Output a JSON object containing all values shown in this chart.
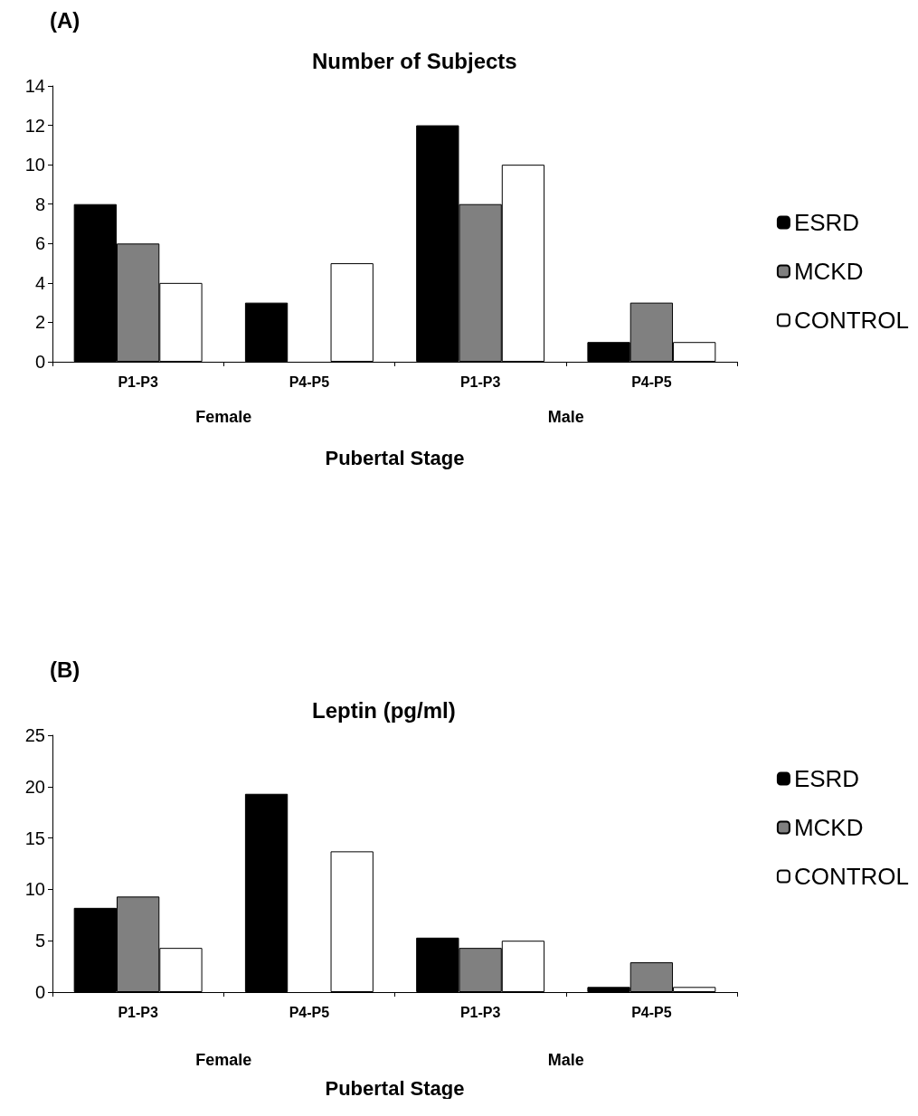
{
  "chart_data": [
    {
      "type": "bar",
      "title": "Number of Subjects",
      "xlabel": "Pubertal Stage",
      "categories": [
        "P1-P3",
        "P4-P5",
        "P1-P3",
        "P4-P5"
      ],
      "series": [
        {
          "name": "ESRD",
          "color": "#000000",
          "values": [
            8,
            3,
            12,
            1
          ]
        },
        {
          "name": "MCKD",
          "color": "#808080",
          "values": [
            6,
            null,
            8,
            3
          ]
        },
        {
          "name": "CONTROL",
          "color": "#ffffff",
          "values": [
            4,
            5,
            10,
            1
          ]
        }
      ],
      "ylim": [
        0,
        14
      ],
      "yticks": [
        0,
        2,
        4,
        6,
        8,
        10,
        12,
        14
      ],
      "grid": false,
      "legend": "right",
      "annotations": [
        "(A)",
        "Female",
        "Male"
      ]
    },
    {
      "type": "bar",
      "title": "Leptin (pg/ml)",
      "xlabel": "Pubertal Stage",
      "categories": [
        "P1-P3",
        "P4-P5",
        "P1-P3",
        "P4-P5"
      ],
      "series": [
        {
          "name": "ESRD",
          "color": "#000000",
          "values": [
            8.2,
            19.3,
            5.3,
            0.5
          ]
        },
        {
          "name": "MCKD",
          "color": "#808080",
          "values": [
            9.3,
            null,
            4.3,
            2.9
          ]
        },
        {
          "name": "CONTROL",
          "color": "#ffffff",
          "values": [
            4.3,
            13.7,
            5.0,
            0.5
          ]
        }
      ],
      "ylim": [
        0,
        25
      ],
      "yticks": [
        0,
        5,
        10,
        15,
        20,
        25
      ],
      "grid": false,
      "legend": "right",
      "annotations": [
        "(B)",
        "Female",
        "Male"
      ]
    }
  ]
}
